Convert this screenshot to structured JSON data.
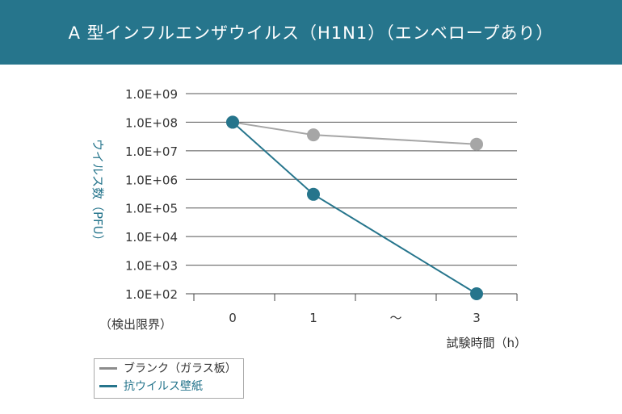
{
  "header": {
    "title": "A 型インフルエンザウイルス（H1N1）（エンベロープあり）"
  },
  "colors": {
    "header_bg": "#26758c",
    "blank": "#a6a6a6",
    "antiviral": "#26758c"
  },
  "chart_data": {
    "type": "line",
    "title": "A 型インフルエンザウイルス（H1N1）（エンベロープあり）",
    "ylabel": "ウイルス数（PFU）",
    "xlabel": "試験時間（h）",
    "yscale": "log",
    "ylim": [
      100,
      1000000000
    ],
    "ytick_labels": [
      "1.0E+09",
      "1.0E+08",
      "1.0E+07",
      "1.0E+06",
      "1.0E+05",
      "1.0E+04",
      "1.0E+03",
      "1.0E+02"
    ],
    "detection_limit_label": "（検出限界）",
    "categories": [
      "0",
      "1",
      "～",
      "3"
    ],
    "series": [
      {
        "name": "ブランク（ガラス板）",
        "color": "#a6a6a6",
        "x": [
          "0",
          "1",
          "3"
        ],
        "values": [
          100000000,
          36000000,
          17000000
        ]
      },
      {
        "name": "抗ウイルス壁紙",
        "color": "#26758c",
        "x": [
          "0",
          "1",
          "3"
        ],
        "values": [
          100000000,
          300000,
          100
        ]
      }
    ],
    "grid": true,
    "legend": "bottom-left"
  }
}
